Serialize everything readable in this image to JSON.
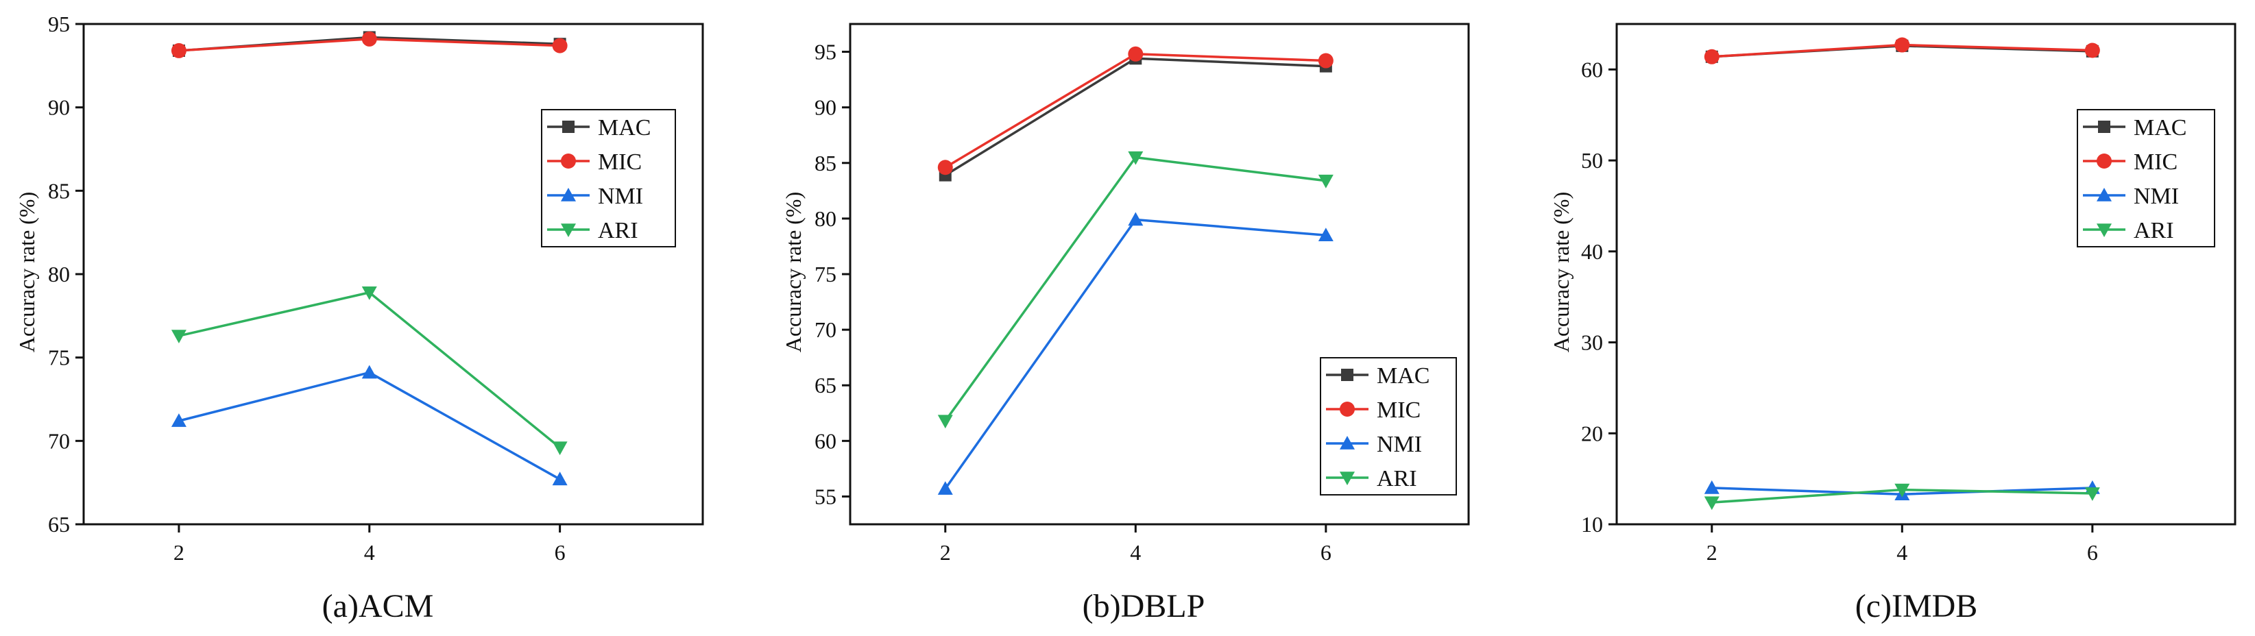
{
  "figure": {
    "colors": {
      "MAC": "#3b3b3b",
      "MIC": "#e8322a",
      "NMI": "#1d6ee0",
      "ARI": "#2fb25e"
    },
    "markers": {
      "MAC": "square",
      "MIC": "circle",
      "NMI": "triangle-up",
      "ARI": "triangle-down"
    }
  },
  "chart_data": [
    {
      "type": "line",
      "caption": "(a)ACM",
      "xlabel": "",
      "ylabel": "Accuracy rate (%)",
      "x": [
        2,
        4,
        6
      ],
      "xticks": [
        "2",
        "4",
        "6"
      ],
      "xlim": [
        1.0,
        7.5
      ],
      "ylim": [
        65,
        95
      ],
      "yticks": [
        65,
        70,
        75,
        80,
        85,
        90,
        95
      ],
      "legend_position": "center-right",
      "series": [
        {
          "name": "MAC",
          "values": [
            93.4,
            94.2,
            93.8
          ]
        },
        {
          "name": "MIC",
          "values": [
            93.4,
            94.1,
            93.7
          ]
        },
        {
          "name": "NMI",
          "values": [
            71.2,
            74.1,
            67.7
          ]
        },
        {
          "name": "ARI",
          "values": [
            76.3,
            78.9,
            69.6
          ]
        }
      ]
    },
    {
      "type": "line",
      "caption": "(b)DBLP",
      "xlabel": "",
      "ylabel": "Accuracy rate (%)",
      "x": [
        2,
        4,
        6
      ],
      "xticks": [
        "2",
        "4",
        "6"
      ],
      "xlim": [
        1.0,
        7.5
      ],
      "ylim": [
        52.5,
        97.5
      ],
      "yticks": [
        55,
        60,
        65,
        70,
        75,
        80,
        85,
        90,
        95
      ],
      "legend_position": "bottom-right",
      "series": [
        {
          "name": "MAC",
          "values": [
            83.9,
            94.4,
            93.7
          ]
        },
        {
          "name": "MIC",
          "values": [
            84.6,
            94.8,
            94.2
          ]
        },
        {
          "name": "NMI",
          "values": [
            55.7,
            79.9,
            78.5
          ]
        },
        {
          "name": "ARI",
          "values": [
            61.8,
            85.5,
            83.4
          ]
        }
      ]
    },
    {
      "type": "line",
      "caption": "(c)IMDB",
      "xlabel": "",
      "ylabel": "Accuracy rate (%)",
      "x": [
        2,
        4,
        6
      ],
      "xticks": [
        "2",
        "4",
        "6"
      ],
      "xlim": [
        1.0,
        7.5
      ],
      "ylim": [
        10,
        65
      ],
      "yticks": [
        10,
        20,
        30,
        40,
        50,
        60
      ],
      "legend_position": "center-right",
      "series": [
        {
          "name": "MAC",
          "values": [
            61.4,
            62.6,
            62.0
          ]
        },
        {
          "name": "MIC",
          "values": [
            61.4,
            62.7,
            62.1
          ]
        },
        {
          "name": "NMI",
          "values": [
            14.0,
            13.3,
            14.0
          ]
        },
        {
          "name": "ARI",
          "values": [
            12.4,
            13.8,
            13.4
          ]
        }
      ]
    }
  ]
}
